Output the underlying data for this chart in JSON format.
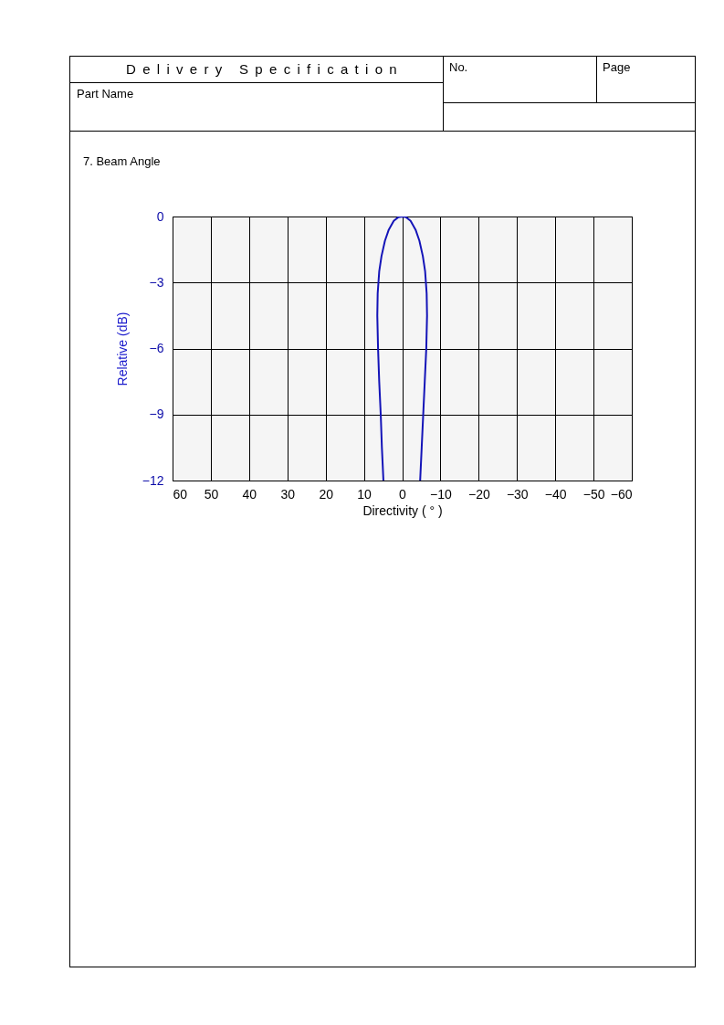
{
  "chart_data": {
    "type": "line",
    "title": "7. Beam Angle",
    "xlabel": "Directivity ( ° )",
    "ylabel": "Relative (dB)",
    "annotations": [
      "Delivery Specification",
      "Part Name",
      "No.",
      "Page"
    ],
    "x": [
      4.9,
      5.3,
      5.6,
      6.0,
      6.3,
      6.5,
      6.4,
      6.0,
      5.4,
      4.5,
      3.5,
      2.2,
      1,
      0,
      -1,
      -2.2,
      -3.5,
      -4.5,
      -5.4,
      -6.0,
      -6.4,
      -6.5,
      -6.3,
      -5.9,
      -5.5,
      -5.1,
      -4.7
    ],
    "series": [
      {
        "color": "#1414b8",
        "values": [
          -12,
          -10.5,
          -9,
          -7.5,
          -6,
          -4.5,
          -3.5,
          -2.5,
          -1.8,
          -1.1,
          -0.6,
          -0.2,
          -0.03,
          0,
          -0.03,
          -0.2,
          -0.6,
          -1.1,
          -1.8,
          -2.5,
          -3.5,
          -4.5,
          -6,
          -7.5,
          -9,
          -10.5,
          -12
        ]
      }
    ],
    "xlim": [
      60,
      -60
    ],
    "xticks": [
      60,
      50,
      40,
      30,
      20,
      10,
      0,
      -10,
      -20,
      -30,
      -40,
      -50,
      -60
    ],
    "ylim": [
      -12,
      0
    ],
    "yticks": [
      0,
      -3,
      -6,
      -9,
      -12
    ],
    "grid": true
  }
}
